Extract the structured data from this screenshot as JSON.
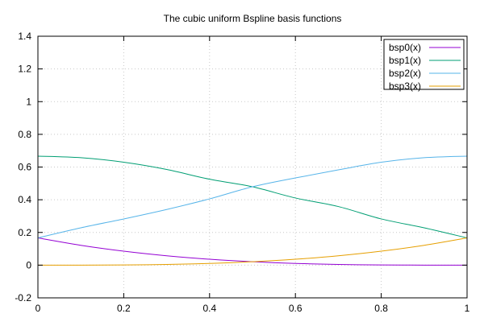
{
  "chart_data": {
    "type": "line",
    "title": "The cubic uniform Bspline basis functions",
    "xlabel": "",
    "ylabel": "",
    "xlim": [
      0,
      1
    ],
    "ylim": [
      -0.2,
      1.4
    ],
    "x_ticks": [
      0,
      0.2,
      0.4,
      0.6,
      0.8,
      1
    ],
    "x_tick_labels": [
      "0",
      "0.2",
      "0.4",
      "0.6",
      "0.8",
      "1"
    ],
    "y_ticks": [
      -0.2,
      0,
      0.2,
      0.4,
      0.6,
      0.8,
      1,
      1.2,
      1.4
    ],
    "y_tick_labels": [
      "-0.2",
      "0",
      "0.2",
      "0.4",
      "0.6",
      "0.8",
      "1",
      "1.2",
      "1.4"
    ],
    "grid": true,
    "legend_position": "top-right",
    "x": [
      0,
      0.1,
      0.2,
      0.3,
      0.4,
      0.5,
      0.6,
      0.7,
      0.8,
      0.9,
      1
    ],
    "series": [
      {
        "name": "bsp0(x)",
        "color": "#9400d3",
        "values": [
          0.1667,
          0.1215,
          0.0853,
          0.0572,
          0.036,
          0.0208,
          0.0107,
          0.0045,
          0.0013,
          0.0002,
          0
        ]
      },
      {
        "name": "bsp1(x)",
        "color": "#009e73",
        "values": [
          0.6667,
          0.6572,
          0.6293,
          0.585,
          0.5253,
          0.4792,
          0.4107,
          0.3585,
          0.2827,
          0.2283,
          0.1667
        ]
      },
      {
        "name": "bsp2(x)",
        "color": "#56b4e9",
        "values": [
          0.1667,
          0.2282,
          0.2827,
          0.3405,
          0.4053,
          0.4792,
          0.5333,
          0.5825,
          0.6293,
          0.6572,
          0.6667
        ]
      },
      {
        "name": "bsp3(x)",
        "color": "#e69f00",
        "values": [
          0,
          0.0002,
          0.0013,
          0.0045,
          0.0107,
          0.0208,
          0.036,
          0.0572,
          0.0853,
          0.1215,
          0.1667
        ]
      }
    ]
  }
}
